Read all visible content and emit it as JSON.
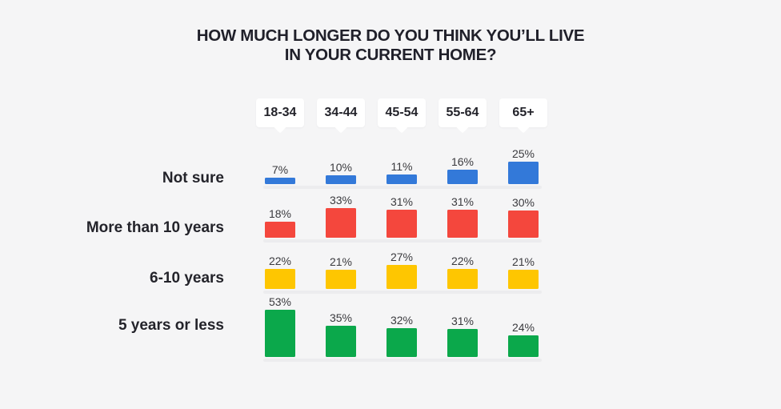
{
  "page": {
    "background": "#f5f5f6"
  },
  "title": {
    "line1": "HOW MUCH LONGER DO YOU THINK YOU’LL LIVE",
    "line2": "IN YOUR CURRENT HOME?"
  },
  "chart_data": {
    "type": "bar",
    "title": "HOW MUCH LONGER DO YOU THINK YOU’LL LIVE IN YOUR CURRENT HOME?",
    "categories": [
      "18-34",
      "34-44",
      "45-54",
      "55-64",
      "65+"
    ],
    "series": [
      {
        "name": "Not sure",
        "color": "#3379d9",
        "values": [
          7,
          10,
          11,
          16,
          25
        ]
      },
      {
        "name": "More than 10 years",
        "color": "#f4473d",
        "values": [
          18,
          33,
          31,
          31,
          30
        ]
      },
      {
        "name": "6-10 years",
        "color": "#fec601",
        "values": [
          22,
          21,
          27,
          22,
          21
        ]
      },
      {
        "name": "5 years or less",
        "color": "#0ba84b",
        "values": [
          53,
          35,
          32,
          31,
          24
        ]
      }
    ],
    "value_suffix": "%",
    "unit": "percent",
    "legend_position": "none",
    "grid": false,
    "layout_hint": "columns are age groups shown as white speech-bubble headers; each answer row has its own light-gray baseline; bar labels shown above bars"
  }
}
